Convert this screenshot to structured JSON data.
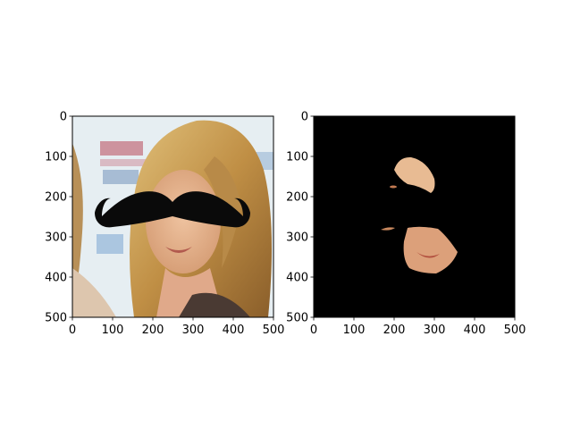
{
  "chart_data": [
    {
      "type": "image",
      "title": "",
      "xlabel": "",
      "ylabel": "",
      "xlim": [
        0,
        500
      ],
      "ylim": [
        500,
        0
      ],
      "xticks": [
        0,
        100,
        200,
        300,
        400,
        500
      ],
      "yticks": [
        0,
        100,
        200,
        300,
        400,
        500
      ],
      "grid": false,
      "content": "photo of a blonde-haired person with a black mustache overlay",
      "overlay": "black-mustache"
    },
    {
      "type": "image",
      "title": "",
      "xlabel": "",
      "ylabel": "",
      "xlim": [
        0,
        500
      ],
      "ylim": [
        500,
        0
      ],
      "xticks": [
        0,
        100,
        200,
        300,
        400,
        500
      ],
      "yticks": [
        0,
        100,
        200,
        300,
        400,
        500
      ],
      "grid": false,
      "content": "skin-color mask of the face on black background with mustache region blacked out",
      "background": "#000000"
    }
  ],
  "colors": {
    "mustache": "#0a0a0a",
    "skin": "#dba27a",
    "hair": "#c9a05a",
    "photo_background": "#e6eef2"
  }
}
